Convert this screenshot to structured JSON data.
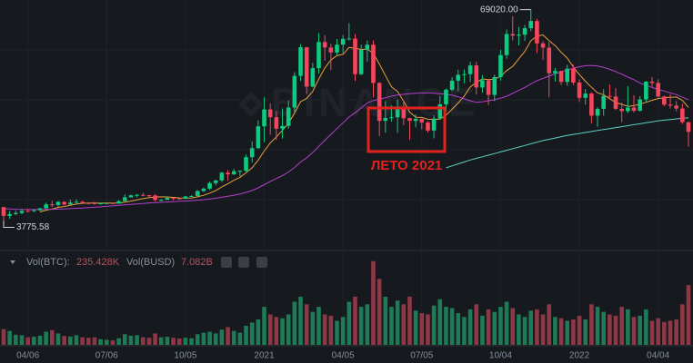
{
  "chart_data": {
    "type": "candlestick",
    "watermark": "BINANCE",
    "note": "ЛЕТО 2021",
    "high_label": "69020.00",
    "low_label": "3775.58",
    "volume_legend": {
      "btc_label": "Vol(BTC):",
      "btc_value": "235.428K",
      "busd_label": "Vol(BUSD)",
      "busd_value": "7.082B"
    },
    "up_color": "#0ecb81",
    "down_color": "#f6465d",
    "volume_up_color": "#1f7a57",
    "volume_down_color": "#8e3745",
    "ylim": [
      0,
      72000
    ],
    "volume_ylim": [
      0,
      340000
    ],
    "grid": true,
    "categories": [
      null,
      null,
      null,
      null,
      "04/06",
      null,
      null,
      null,
      null,
      null,
      null,
      null,
      null,
      null,
      null,
      null,
      null,
      "07/06",
      null,
      null,
      null,
      null,
      null,
      null,
      null,
      null,
      null,
      null,
      null,
      null,
      "10/05",
      null,
      null,
      null,
      null,
      null,
      null,
      null,
      null,
      null,
      null,
      null,
      null,
      "2021",
      null,
      null,
      null,
      null,
      null,
      null,
      null,
      null,
      null,
      null,
      null,
      null,
      "04/05",
      null,
      null,
      null,
      null,
      null,
      null,
      null,
      null,
      null,
      null,
      null,
      null,
      "07/05",
      null,
      null,
      null,
      null,
      null,
      null,
      null,
      null,
      null,
      null,
      null,
      null,
      "10/04",
      null,
      null,
      null,
      null,
      null,
      null,
      null,
      null,
      null,
      null,
      null,
      null,
      "2022",
      null,
      null,
      null,
      null,
      null,
      null,
      null,
      null,
      null,
      null,
      null,
      null,
      "04/04",
      null,
      null,
      null,
      null,
      null
    ],
    "open": [
      8030,
      5360,
      5880,
      6240,
      6880,
      6860,
      7120,
      7700,
      8900,
      8720,
      9680,
      8900,
      9450,
      9700,
      9340,
      9290,
      9010,
      9240,
      9300,
      9160,
      9900,
      11100,
      11700,
      11850,
      11730,
      11650,
      10280,
      10330,
      10920,
      10770,
      10670,
      11370,
      11500,
      13030,
      13760,
      15480,
      16300,
      18700,
      18180,
      19160,
      19270,
      23480,
      26280,
      33000,
      38200,
      35830,
      32260,
      33100,
      38800,
      48580,
      57400,
      45250,
      50970,
      59020,
      57320,
      55800,
      58200,
      60000,
      60100,
      49100,
      56600,
      58200,
      46400,
      34700,
      35600,
      35800,
      39100,
      35500,
      34700,
      35300,
      34200,
      31700,
      35400,
      39800,
      44300,
      47100,
      48900,
      49100,
      51800,
      45000,
      47200,
      42700,
      48200,
      55000,
      61500,
      61000,
      61300,
      63300,
      65500,
      58600,
      57300,
      49400,
      50100,
      46700,
      50800,
      46500,
      41800,
      43100,
      36300,
      38400,
      42400,
      42200,
      38400,
      37700,
      38800,
      37800,
      41300,
      46800,
      46400,
      42200,
      39700,
      39400,
      38500,
      34300
    ],
    "high": [
      8180,
      6900,
      6980,
      7460,
      7470,
      7300,
      7800,
      9470,
      10070,
      9950,
      9840,
      10380,
      10430,
      10000,
      9650,
      9760,
      9400,
      9480,
      9350,
      10200,
      12000,
      11900,
      12090,
      12470,
      11800,
      12090,
      10550,
      11180,
      10990,
      10950,
      11490,
      11720,
      13350,
      14100,
      15960,
      16480,
      18950,
      19500,
      19920,
      19420,
      24300,
      28420,
      34800,
      41950,
      40100,
      37850,
      38530,
      40950,
      49700,
      58350,
      57530,
      52640,
      61780,
      61180,
      58440,
      60000,
      61200,
      64850,
      61500,
      58200,
      59500,
      59500,
      46600,
      40800,
      39500,
      41300,
      41000,
      35700,
      36700,
      35300,
      34600,
      36400,
      42300,
      44700,
      48100,
      50500,
      50500,
      52900,
      52900,
      48800,
      47300,
      49000,
      56600,
      62900,
      67000,
      63700,
      64300,
      69020,
      66200,
      59300,
      59000,
      51000,
      50200,
      52000,
      52100,
      47500,
      44500,
      43500,
      38900,
      44500,
      45900,
      44800,
      40300,
      45400,
      42600,
      42300,
      47000,
      48200,
      47500,
      42500,
      42900,
      40800,
      40000,
      34300
    ],
    "low": [
      3775.58,
      4440,
      5670,
      5860,
      6500,
      6460,
      6780,
      7640,
      8120,
      8200,
      8630,
      8630,
      9260,
      9150,
      8900,
      8830,
      8880,
      9040,
      9000,
      9130,
      9890,
      10950,
      11100,
      11400,
      11100,
      9800,
      9870,
      10200,
      10140,
      10370,
      10530,
      11200,
      11420,
      12750,
      13300,
      14800,
      15770,
      16200,
      18000,
      17570,
      19000,
      21800,
      26000,
      28100,
      30400,
      28800,
      29240,
      32300,
      37400,
      47000,
      43000,
      45000,
      49300,
      53270,
      50400,
      55000,
      55500,
      59500,
      47000,
      48800,
      53000,
      42000,
      30000,
      31000,
      34500,
      31000,
      33300,
      28800,
      32700,
      32100,
      31100,
      29300,
      35300,
      37600,
      43800,
      43800,
      46300,
      46700,
      42800,
      43400,
      39600,
      40800,
      47100,
      53900,
      59500,
      58000,
      59400,
      62300,
      55600,
      53500,
      42000,
      46800,
      45700,
      45500,
      45700,
      40500,
      39700,
      34000,
      32900,
      36300,
      41600,
      38000,
      34300,
      37100,
      37200,
      37600,
      40500,
      45200,
      41900,
      39200,
      38500,
      37600,
      33700,
      26700
    ],
    "close": [
      5360,
      5880,
      6240,
      6880,
      6860,
      7120,
      7700,
      8900,
      8720,
      9680,
      8900,
      9450,
      9700,
      9340,
      9290,
      9010,
      9240,
      9300,
      9160,
      9900,
      11100,
      11700,
      11850,
      11730,
      11650,
      10280,
      10330,
      10920,
      10770,
      10670,
      11370,
      11500,
      13030,
      13760,
      15480,
      16300,
      18700,
      18180,
      19160,
      19270,
      23480,
      26280,
      33000,
      38200,
      35830,
      32260,
      33100,
      38800,
      48580,
      57400,
      45250,
      50970,
      59020,
      57320,
      55800,
      58200,
      60000,
      60100,
      49100,
      56600,
      58200,
      46400,
      34700,
      35600,
      35800,
      39100,
      35500,
      34700,
      35300,
      34200,
      31700,
      35400,
      39800,
      44300,
      47100,
      48900,
      49100,
      51800,
      45000,
      47200,
      42700,
      48200,
      55000,
      61500,
      61000,
      61300,
      63300,
      65500,
      58600,
      57300,
      49400,
      50100,
      46700,
      50800,
      46500,
      41800,
      43100,
      36300,
      38400,
      42400,
      42200,
      38400,
      37700,
      38800,
      37800,
      41300,
      46800,
      46400,
      42200,
      39700,
      39400,
      38500,
      34300,
      31300
    ],
    "volume": [
      62000,
      55000,
      40000,
      38000,
      30000,
      32000,
      36000,
      52000,
      58000,
      45000,
      35000,
      33000,
      38000,
      30000,
      28000,
      30000,
      22000,
      20000,
      18000,
      26000,
      42000,
      36000,
      38000,
      30000,
      28000,
      45000,
      30000,
      32000,
      28000,
      25000,
      28000,
      26000,
      42000,
      48000,
      52000,
      45000,
      60000,
      70000,
      55000,
      48000,
      75000,
      88000,
      100000,
      150000,
      120000,
      110000,
      105000,
      120000,
      170000,
      190000,
      160000,
      130000,
      150000,
      120000,
      115000,
      95000,
      110000,
      170000,
      190000,
      150000,
      160000,
      330000,
      260000,
      190000,
      150000,
      175000,
      160000,
      190000,
      135000,
      125000,
      120000,
      155000,
      180000,
      150000,
      145000,
      125000,
      110000,
      140000,
      160000,
      115000,
      140000,
      130000,
      150000,
      170000,
      145000,
      120000,
      110000,
      135000,
      140000,
      120000,
      160000,
      110000,
      105000,
      95000,
      100000,
      115000,
      100000,
      160000,
      150000,
      130000,
      120000,
      115000,
      150000,
      140000,
      110000,
      115000,
      140000,
      95000,
      105000,
      90000,
      95000,
      100000,
      160000,
      235428
    ],
    "lines": [
      {
        "color": "#e8a03a",
        "values": [
          null,
          null,
          null,
          null,
          null,
          null,
          6577,
          7083,
          7489,
          7980,
          8269,
          8639,
          9007,
          9241,
          9297,
          9339,
          9276,
          9333,
          9291,
          9320,
          9571,
          9916,
          10321,
          10677,
          11013,
          11173,
          11234,
          11209,
          11076,
          10907,
          10856,
          10834,
          11227,
          11717,
          12369,
          13159,
          14306,
          15279,
          16373,
          17264,
          18653,
          20196,
          22581,
          25367,
          27889,
          29760,
          31736,
          33924,
          37110,
          40596,
          41603,
          43766,
          47589,
          51049,
          53477,
          54851,
          55223,
          57344,
          57077,
          56731,
          56857,
          55514,
          52157,
          48671,
          45200,
          43771,
          40757,
          37400,
          35814,
          35743,
          35186,
          35129,
          35229,
          36486,
          38257,
          40200,
          42329,
          45200,
          46571,
          47629,
          47400,
          47557,
          48429,
          50200,
          51514,
          53843,
          56143,
          59400,
          60886,
          61214,
          59486,
          57929,
          55843,
          54057,
          51343,
          48943,
          46914,
          45043,
          43371,
          42757,
          41529,
          40371,
          39786,
          39171,
          39386,
          39800,
          40429,
          41029,
          41571,
          41857,
          41943,
          42043,
          41043,
          38829
        ]
      },
      {
        "color": "#b63ecf",
        "values": [
          7600,
          7500,
          7400,
          7350,
          7300,
          7300,
          7300,
          7350,
          7400,
          7450,
          7500,
          7600,
          7700,
          7800,
          7900,
          8000,
          8150,
          8300,
          8450,
          8600,
          8750,
          8900,
          9050,
          9200,
          9350,
          9450,
          9550,
          9650,
          9750,
          9850,
          9950,
          10050,
          10200,
          10350,
          10550,
          10800,
          11100,
          11400,
          11750,
          12100,
          12600,
          13200,
          14000,
          15000,
          16000,
          16900,
          17800,
          18900,
          20300,
          22000,
          23300,
          24900,
          26800,
          28700,
          30500,
          32300,
          34100,
          35900,
          37200,
          38700,
          40200,
          41000,
          41400,
          41800,
          42300,
          42700,
          42900,
          43100,
          43200,
          43300,
          43300,
          43200,
          43100,
          42900,
          42600,
          42100,
          41500,
          40900,
          40400,
          40600,
          40900,
          41200,
          41700,
          42300,
          43200,
          44100,
          45000,
          46100,
          47100,
          47800,
          48500,
          49200,
          49800,
          50400,
          50900,
          51400,
          51700,
          51800,
          51600,
          51200,
          50600,
          49900,
          49100,
          48200,
          47400,
          46400,
          45600,
          45000,
          44400,
          43900,
          43300,
          42800,
          42000,
          41200
        ]
      },
      {
        "color": "#5fcfc4",
        "values": [
          null,
          null,
          null,
          null,
          null,
          null,
          null,
          null,
          null,
          null,
          null,
          null,
          null,
          null,
          null,
          null,
          null,
          null,
          null,
          null,
          null,
          null,
          null,
          null,
          null,
          null,
          null,
          null,
          null,
          null,
          null,
          null,
          null,
          null,
          null,
          null,
          null,
          null,
          null,
          null,
          null,
          null,
          null,
          null,
          null,
          null,
          null,
          null,
          null,
          null,
          null,
          null,
          null,
          null,
          null,
          null,
          null,
          null,
          null,
          null,
          null,
          null,
          null,
          null,
          null,
          null,
          null,
          null,
          null,
          null,
          null,
          null,
          null,
          20200,
          20800,
          21400,
          22000,
          22600,
          23100,
          23600,
          24100,
          24600,
          25100,
          25600,
          26100,
          26600,
          27100,
          27600,
          28100,
          28600,
          29000,
          29400,
          29800,
          30200,
          30500,
          30800,
          31100,
          31400,
          31700,
          32000,
          32300,
          32600,
          32900,
          33200,
          33500,
          33800,
          34100,
          34400,
          34700,
          34900,
          35100,
          35300,
          35500,
          35600
        ]
      }
    ]
  }
}
